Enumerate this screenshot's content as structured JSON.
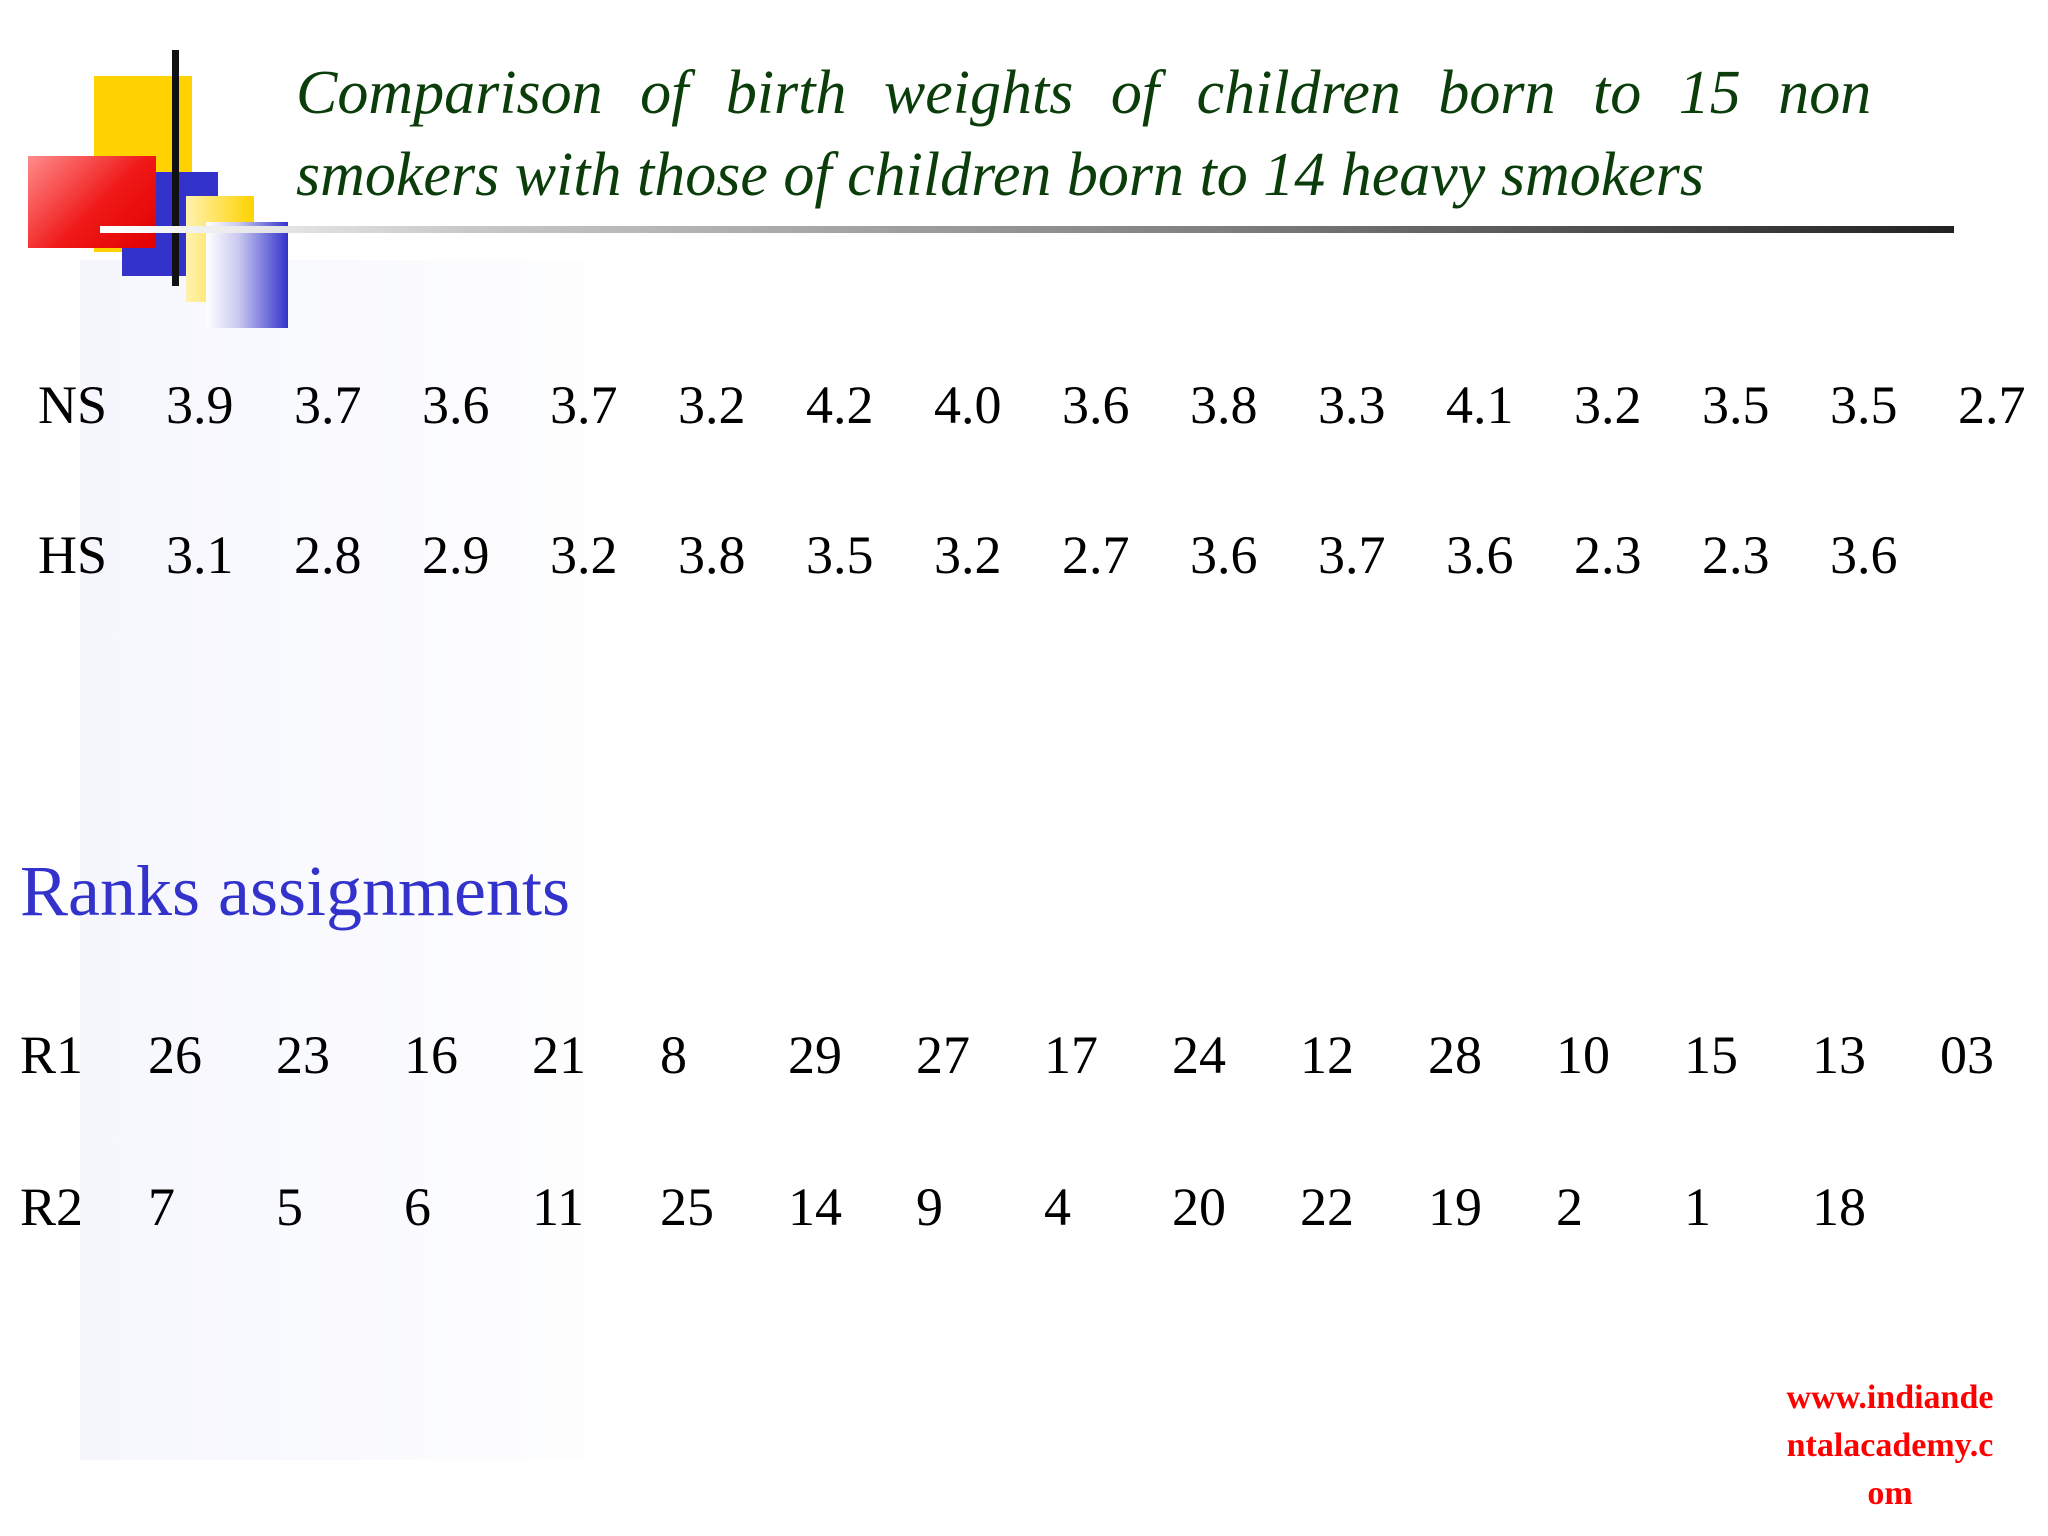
{
  "title": {
    "line1": "Comparison of birth weights of children born to 15 non",
    "line2": "smokers with those of children born to 14 heavy smokers"
  },
  "weights": {
    "ns": {
      "label": "NS",
      "values": [
        "3.9",
        "3.7",
        "3.6",
        "3.7",
        "3.2",
        "4.2",
        "4.0",
        "3.6",
        "3.8",
        "3.3",
        "4.1",
        "3.2",
        "3.5",
        "3.5",
        "2.7"
      ]
    },
    "hs": {
      "label": "HS",
      "values": [
        "3.1",
        "2.8",
        "2.9",
        "3.2",
        "3.8",
        "3.5",
        "3.2",
        "2.7",
        "3.6",
        "3.7",
        "3.6",
        "2.3",
        "2.3",
        "3.6"
      ]
    }
  },
  "ranks": {
    "heading": "Ranks assignments",
    "r1": {
      "label": "R1",
      "values": [
        "26",
        "23",
        "16",
        "21",
        "8",
        "29",
        "27",
        "17",
        "24",
        "12",
        "28",
        "10",
        "15",
        "13",
        "03"
      ]
    },
    "r2": {
      "label": "R2",
      "values": [
        "7",
        "5",
        "6",
        "11",
        "25",
        "14",
        "9",
        "4",
        "20",
        "22",
        "19",
        "2",
        "1",
        "18"
      ]
    }
  },
  "watermark": {
    "line1": "www.indiande",
    "line2": "ntalacademy.c",
    "line3": "om"
  },
  "colors": {
    "title": "#0b3d0b",
    "heading": "#3333CC",
    "watermark": "#FF0000",
    "accent_yellow": "#FFD200",
    "accent_blue": "#3333CC",
    "accent_red": "#E00000"
  }
}
